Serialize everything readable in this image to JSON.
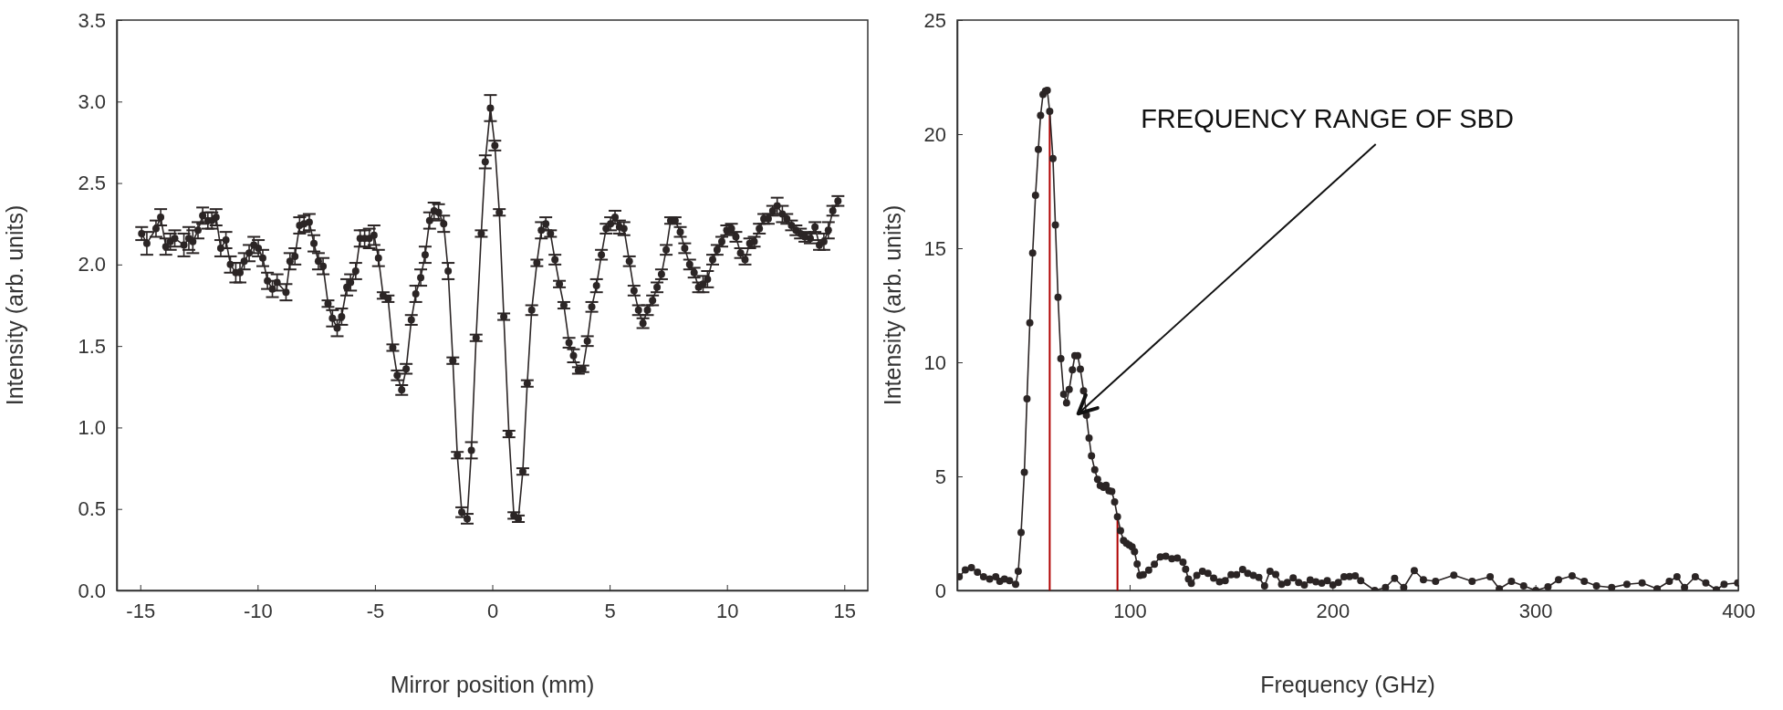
{
  "chart_data": [
    {
      "type": "line",
      "xlabel": "Mirror position (mm)",
      "ylabel": "Intensity (arb. units)",
      "xlim": [
        -16,
        16
      ],
      "ylim": [
        0,
        3.5
      ],
      "xticks": [
        -15,
        -10,
        -5,
        0,
        5,
        10,
        15
      ],
      "yticks": [
        {
          "value": 0,
          "label": "0.0"
        },
        {
          "value": 0.5,
          "label": "0.5"
        },
        {
          "value": 1,
          "label": "1.0"
        },
        {
          "value": 1.5,
          "label": "1.5"
        },
        {
          "value": 2,
          "label": "2.0"
        },
        {
          "value": 2.5,
          "label": "2.5"
        },
        {
          "value": 3,
          "label": "3.0"
        },
        {
          "value": 3.5,
          "label": "3.5"
        }
      ],
      "marker": "circle",
      "x": [
        -14.94,
        -14.72,
        -14.33,
        -14.13,
        -13.91,
        -13.72,
        -13.53,
        -13.14,
        -12.93,
        -12.76,
        -12.54,
        -12.34,
        -12.12,
        -11.95,
        -11.77,
        -11.57,
        -11.35,
        -11.16,
        -10.93,
        -10.75,
        -10.57,
        -10.36,
        -10.16,
        -9.97,
        -9.78,
        -9.58,
        -9.37,
        -9.17,
        -8.79,
        -8.62,
        -8.41,
        -8.21,
        -8.02,
        -7.8,
        -7.6,
        -7.41,
        -7.21,
        -7.0,
        -6.81,
        -6.61,
        -6.42,
        -6.2,
        -6.04,
        -5.82,
        -5.63,
        -5.44,
        -5.24,
        -5.04,
        -4.85,
        -4.65,
        -4.44,
        -4.24,
        -4.05,
        -3.86,
        -3.67,
        -3.45,
        -3.26,
        -3.05,
        -2.86,
        -2.67,
        -2.48,
        -2.29,
        -2.07,
        -1.88,
        -1.68,
        -1.49,
        -1.3,
        -1.07,
        -0.89,
        -0.69,
        -0.47,
        -0.3,
        -0.08,
        0.11,
        0.3,
        0.49,
        0.71,
        0.92,
        1.11,
        1.3,
        1.49,
        1.68,
        1.9,
        2.09,
        2.28,
        2.48,
        2.67,
        2.86,
        3.05,
        3.27,
        3.46,
        3.67,
        3.86,
        4.05,
        4.24,
        4.44,
        4.65,
        4.85,
        5.04,
        5.23,
        5.42,
        5.61,
        5.84,
        6.04,
        6.23,
        6.42,
        6.61,
        6.83,
        7.02,
        7.21,
        7.41,
        7.6,
        7.79,
        8.01,
        8.2,
        8.41,
        8.6,
        8.79,
        8.98,
        9.17,
        9.39,
        9.58,
        9.78,
        9.99,
        10.19,
        10.38,
        10.58,
        10.77,
        10.97,
        11.16,
        11.38,
        11.57,
        11.76,
        11.95,
        12.14,
        12.36,
        12.55,
        12.75,
        12.94,
        13.13,
        13.32,
        13.55,
        13.75,
        13.94,
        14.13,
        14.32,
        14.51,
        14.73
      ],
      "series": [
        {
          "color": "#2b2525",
          "values": [
            2.19,
            2.13,
            2.22,
            2.29,
            2.11,
            2.14,
            2.16,
            2.12,
            2.16,
            2.14,
            2.21,
            2.3,
            2.27,
            2.27,
            2.29,
            2.1,
            2.15,
            2.0,
            1.95,
            1.95,
            2.02,
            2.07,
            2.12,
            2.1,
            2.04,
            1.9,
            1.85,
            1.89,
            1.83,
            2.02,
            2.05,
            2.24,
            2.25,
            2.26,
            2.13,
            2.02,
            1.99,
            1.76,
            1.67,
            1.61,
            1.68,
            1.86,
            1.89,
            1.96,
            2.16,
            2.16,
            2.16,
            2.18,
            2.04,
            1.81,
            1.79,
            1.49,
            1.32,
            1.23,
            1.36,
            1.66,
            1.82,
            1.92,
            2.06,
            2.27,
            2.33,
            2.32,
            2.25,
            1.96,
            1.41,
            0.83,
            0.48,
            0.44,
            0.86,
            1.55,
            2.19,
            2.63,
            2.96,
            2.73,
            2.32,
            1.68,
            0.96,
            0.46,
            0.44,
            0.73,
            1.27,
            1.72,
            2.01,
            2.21,
            2.25,
            2.19,
            2.03,
            1.88,
            1.75,
            1.52,
            1.44,
            1.35,
            1.36,
            1.53,
            1.74,
            1.87,
            2.06,
            2.22,
            2.25,
            2.29,
            2.23,
            2.22,
            2.02,
            1.84,
            1.72,
            1.64,
            1.72,
            1.78,
            1.86,
            1.94,
            2.09,
            2.27,
            2.27,
            2.2,
            2.1,
            2.0,
            1.95,
            1.86,
            1.88,
            1.91,
            2.03,
            2.09,
            2.14,
            2.21,
            2.22,
            2.17,
            2.07,
            2.03,
            2.13,
            2.14,
            2.22,
            2.28,
            2.28,
            2.33,
            2.36,
            2.31,
            2.28,
            2.24,
            2.21,
            2.19,
            2.17,
            2.16,
            2.23,
            2.12,
            2.14,
            2.21,
            2.33,
            2.39
          ],
          "errors": [
            0.04,
            0.07,
            0.05,
            0.05,
            0.05,
            0.05,
            0.05,
            0.07,
            0.07,
            0.07,
            0.05,
            0.05,
            0.05,
            0.05,
            0.05,
            0.05,
            0.05,
            0.05,
            0.06,
            0.06,
            0.05,
            0.05,
            0.05,
            0.05,
            0.05,
            0.05,
            0.05,
            0.05,
            0.05,
            0.05,
            0.05,
            0.05,
            0.05,
            0.05,
            0.05,
            0.05,
            0.05,
            0.02,
            0.05,
            0.05,
            0.05,
            0.05,
            0.05,
            0.05,
            0.05,
            0.05,
            0.06,
            0.06,
            0.05,
            0.02,
            0.02,
            0.02,
            0.03,
            0.03,
            0.03,
            0.03,
            0.05,
            0.05,
            0.05,
            0.05,
            0.05,
            0.05,
            0.05,
            0.05,
            0.02,
            0.02,
            0.03,
            0.03,
            0.05,
            0.02,
            0.02,
            0.04,
            0.08,
            0.03,
            0.02,
            0.02,
            0.02,
            0.02,
            0.02,
            0.02,
            0.02,
            0.03,
            0.02,
            0.05,
            0.04,
            0.02,
            0.03,
            0.02,
            0.02,
            0.03,
            0.04,
            0.02,
            0.02,
            0.03,
            0.03,
            0.04,
            0.03,
            0.03,
            0.04,
            0.04,
            0.04,
            0.04,
            0.03,
            0.03,
            0.03,
            0.03,
            0.03,
            0.03,
            0.03,
            0.03,
            0.03,
            0.02,
            0.02,
            0.03,
            0.03,
            0.03,
            0.03,
            0.03,
            0.05,
            0.05,
            0.03,
            0.03,
            0.03,
            0.03,
            0.03,
            0.03,
            0.03,
            0.03,
            0.03,
            0.03,
            0.03,
            0.03,
            0.03,
            0.03,
            0.05,
            0.05,
            0.03,
            0.03,
            0.03,
            0.03,
            0.03,
            0.03,
            0.03,
            0.03,
            0.05,
            0.05,
            0.03,
            0.03
          ]
        }
      ]
    },
    {
      "type": "line",
      "xlabel": "Frequency (GHz)",
      "ylabel": "Intensity (arb. units)",
      "xlim": [
        15,
        400
      ],
      "ylim": [
        0,
        25
      ],
      "xticks": [
        100,
        200,
        300,
        400
      ],
      "yticks": [
        0,
        5,
        10,
        15,
        20,
        25
      ],
      "marker": "circle",
      "x": [
        16,
        19,
        22,
        25,
        28,
        31,
        34,
        36,
        38.3,
        40.8,
        43.8,
        45.1,
        46.5,
        48.1,
        49.4,
        50.8,
        52.2,
        53.6,
        55,
        56.1,
        57.3,
        58.5,
        59.4,
        60.6,
        62.2,
        63.4,
        64.7,
        66.1,
        67.5,
        68.9,
        70.2,
        71.8,
        73,
        74.4,
        75.7,
        77.3,
        78.7,
        80,
        81.2,
        82.8,
        84.2,
        85.5,
        87.1,
        88.4,
        89.8,
        91.2,
        92.6,
        94,
        95.5,
        97,
        98.4,
        99.8,
        101.2,
        102.4,
        103.7,
        105.1,
        106.7,
        109.4,
        112.2,
        115.1,
        117.8,
        120.8,
        123.5,
        126.3,
        127.6,
        129,
        130.4,
        133.1,
        135.9,
        138.6,
        141.4,
        144.3,
        147.1,
        150,
        152.7,
        155.7,
        158.2,
        161,
        163.7,
        166.5,
        169.2,
        172,
        174.9,
        177.7,
        180.6,
        183.3,
        186.1,
        189,
        191.8,
        194.7,
        197.4,
        200.2,
        202.9,
        205.7,
        208.4,
        211.2,
        213.9,
        220.8,
        226.1,
        230.6,
        235.1,
        240.3,
        244.8,
        250.8,
        259.8,
        268.8,
        277.7,
        282.2,
        288.2,
        294.2,
        300.2,
        306.2,
        311.4,
        318.1,
        324.1,
        330.1,
        337.6,
        345.1,
        352.6,
        360,
        366,
        369.8,
        373.5,
        378.8,
        384,
        389.2,
        393,
        399.7
      ],
      "series": [
        {
          "color": "#2b2525",
          "values": [
            0.6,
            0.9,
            1.0,
            0.8,
            0.6,
            0.5,
            0.6,
            0.4,
            0.5,
            0.43,
            0.27,
            0.84,
            2.54,
            5.18,
            8.4,
            11.73,
            14.79,
            17.32,
            19.33,
            20.82,
            21.74,
            21.89,
            21.92,
            21.0,
            18.93,
            16.02,
            12.85,
            10.16,
            8.6,
            8.22,
            8.81,
            9.67,
            10.29,
            10.29,
            9.7,
            8.75,
            7.68,
            6.68,
            5.9,
            5.29,
            4.87,
            4.6,
            4.52,
            4.61,
            4.37,
            4.34,
            3.88,
            3.23,
            2.62,
            2.19,
            2.07,
            1.99,
            1.91,
            1.7,
            1.16,
            0.66,
            0.69,
            0.89,
            1.15,
            1.47,
            1.5,
            1.39,
            1.42,
            1.24,
            0.93,
            0.5,
            0.31,
            0.66,
            0.84,
            0.75,
            0.54,
            0.38,
            0.43,
            0.69,
            0.69,
            0.92,
            0.75,
            0.66,
            0.57,
            0.2,
            0.84,
            0.7,
            0.27,
            0.35,
            0.55,
            0.35,
            0.24,
            0.46,
            0.38,
            0.32,
            0.43,
            0.24,
            0.35,
            0.6,
            0.61,
            0.64,
            0.43,
            0.0,
            0.13,
            0.53,
            0.13,
            0.87,
            0.47,
            0.4,
            0.67,
            0.4,
            0.6,
            0.07,
            0.4,
            0.2,
            0.0,
            0.16,
            0.47,
            0.64,
            0.4,
            0.2,
            0.13,
            0.27,
            0.33,
            0.07,
            0.4,
            0.6,
            0.13,
            0.6,
            0.33,
            0.03,
            0.27,
            0.33
          ]
        }
      ],
      "ref_lines": [
        {
          "axis": "x",
          "value": 60.6,
          "color": "#b00000"
        },
        {
          "axis": "x",
          "value": 94,
          "color": "#b00000"
        }
      ],
      "annotations": [
        "FREQUENCY RANGE OF SBD"
      ]
    }
  ]
}
